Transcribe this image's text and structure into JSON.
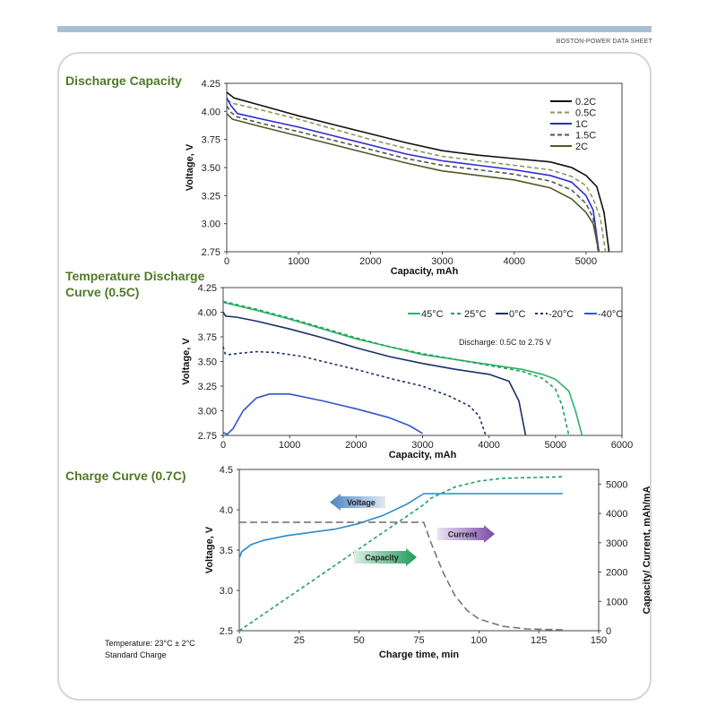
{
  "header": {
    "sheet_label": "BOSTON-POWER DATA SHEET"
  },
  "sections": {
    "discharge_title": "Discharge Capacity",
    "temp_title_1": "Temperature Discharge",
    "temp_title_2": "Curve (0.5C)",
    "charge_title": "Charge Curve (0.7C)"
  },
  "footnote": {
    "line1": "Temperature:  23°C ±  2°C",
    "line2": "Standard Charge"
  },
  "chart_data": [
    {
      "type": "line",
      "title": "Discharge Capacity",
      "xlabel": "Capacity, mAh",
      "ylabel": "Voltage, V",
      "xlim": [
        0,
        5500
      ],
      "ylim": [
        2.75,
        4.25
      ],
      "xticks": [
        0,
        1000,
        2000,
        3000,
        4000,
        5000
      ],
      "yticks": [
        "2.75",
        "3.00",
        "3.25",
        "3.50",
        "3.75",
        "4.00",
        "4.25"
      ],
      "series": [
        {
          "name": "0.2C",
          "color": "#111111",
          "dash": "",
          "points": [
            [
              0,
              4.17
            ],
            [
              100,
              4.12
            ],
            [
              500,
              4.05
            ],
            [
              1000,
              3.96
            ],
            [
              1500,
              3.88
            ],
            [
              2000,
              3.8
            ],
            [
              2500,
              3.72
            ],
            [
              3000,
              3.65
            ],
            [
              3500,
              3.61
            ],
            [
              4000,
              3.58
            ],
            [
              4500,
              3.55
            ],
            [
              4800,
              3.5
            ],
            [
              5000,
              3.43
            ],
            [
              5150,
              3.33
            ],
            [
              5250,
              3.1
            ],
            [
              5320,
              2.75
            ]
          ]
        },
        {
          "name": "0.5C",
          "color": "#8a9a5b",
          "dash": "5,3",
          "points": [
            [
              0,
              4.1
            ],
            [
              100,
              4.07
            ],
            [
              500,
              4.01
            ],
            [
              1000,
              3.93
            ],
            [
              1500,
              3.84
            ],
            [
              2000,
              3.75
            ],
            [
              2500,
              3.67
            ],
            [
              3000,
              3.6
            ],
            [
              3500,
              3.56
            ],
            [
              4000,
              3.52
            ],
            [
              4500,
              3.48
            ],
            [
              4800,
              3.42
            ],
            [
              5000,
              3.34
            ],
            [
              5100,
              3.22
            ],
            [
              5200,
              3.05
            ],
            [
              5270,
              2.75
            ]
          ]
        },
        {
          "name": "1C",
          "color": "#2a2ad0",
          "dash": "",
          "points": [
            [
              0,
              4.12
            ],
            [
              60,
              4.05
            ],
            [
              150,
              3.98
            ],
            [
              500,
              3.93
            ],
            [
              1000,
              3.86
            ],
            [
              1500,
              3.78
            ],
            [
              2000,
              3.7
            ],
            [
              2500,
              3.62
            ],
            [
              3000,
              3.56
            ],
            [
              3500,
              3.52
            ],
            [
              4000,
              3.48
            ],
            [
              4500,
              3.43
            ],
            [
              4800,
              3.37
            ],
            [
              5000,
              3.25
            ],
            [
              5100,
              3.12
            ],
            [
              5180,
              2.75
            ]
          ]
        },
        {
          "name": "1.5C",
          "color": "#555555",
          "dash": "5,3",
          "points": [
            [
              0,
              4.05
            ],
            [
              60,
              3.99
            ],
            [
              150,
              3.95
            ],
            [
              500,
              3.89
            ],
            [
              1000,
              3.82
            ],
            [
              1500,
              3.74
            ],
            [
              2000,
              3.66
            ],
            [
              2500,
              3.58
            ],
            [
              3000,
              3.52
            ],
            [
              3500,
              3.48
            ],
            [
              4000,
              3.44
            ],
            [
              4500,
              3.38
            ],
            [
              4800,
              3.3
            ],
            [
              5000,
              3.18
            ],
            [
              5100,
              3.05
            ],
            [
              5170,
              2.75
            ]
          ]
        },
        {
          "name": "2C",
          "color": "#4e5a25",
          "dash": "",
          "points": [
            [
              0,
              3.98
            ],
            [
              80,
              3.93
            ],
            [
              500,
              3.86
            ],
            [
              1000,
              3.78
            ],
            [
              1500,
              3.7
            ],
            [
              2000,
              3.62
            ],
            [
              2500,
              3.54
            ],
            [
              3000,
              3.47
            ],
            [
              3500,
              3.43
            ],
            [
              4000,
              3.39
            ],
            [
              4500,
              3.32
            ],
            [
              4800,
              3.22
            ],
            [
              5000,
              3.1
            ],
            [
              5100,
              3.0
            ],
            [
              5180,
              2.75
            ]
          ]
        }
      ],
      "legend_position": "top-right"
    },
    {
      "type": "line",
      "title": "Temperature Discharge Curve (0.5C)",
      "xlabel": "Capacity, mAh",
      "ylabel": "Voltage, V",
      "xlim": [
        0,
        6000
      ],
      "ylim": [
        2.75,
        4.25
      ],
      "xticks": [
        0,
        1000,
        2000,
        3000,
        4000,
        5000,
        6000
      ],
      "yticks": [
        "2.75",
        "3.00",
        "3.25",
        "3.50",
        "3.75",
        "4.00",
        "4.25"
      ],
      "annotation": "Discharge: 0.5C to 2.75 V",
      "series": [
        {
          "name": "45°C",
          "color": "#2db36b",
          "dash": "",
          "points": [
            [
              0,
              4.1
            ],
            [
              500,
              4.02
            ],
            [
              1000,
              3.93
            ],
            [
              1500,
              3.83
            ],
            [
              2000,
              3.73
            ],
            [
              2500,
              3.65
            ],
            [
              3000,
              3.57
            ],
            [
              3500,
              3.52
            ],
            [
              4000,
              3.47
            ],
            [
              4500,
              3.42
            ],
            [
              4800,
              3.37
            ],
            [
              5000,
              3.32
            ],
            [
              5200,
              3.2
            ],
            [
              5300,
              3.0
            ],
            [
              5400,
              2.75
            ]
          ]
        },
        {
          "name": "25°C",
          "color": "#1fa058",
          "dash": "4,3",
          "points": [
            [
              0,
              4.11
            ],
            [
              500,
              4.03
            ],
            [
              1000,
              3.94
            ],
            [
              1500,
              3.84
            ],
            [
              2000,
              3.74
            ],
            [
              2500,
              3.65
            ],
            [
              3000,
              3.58
            ],
            [
              3500,
              3.52
            ],
            [
              4000,
              3.46
            ],
            [
              4500,
              3.4
            ],
            [
              4800,
              3.33
            ],
            [
              5000,
              3.22
            ],
            [
              5100,
              3.05
            ],
            [
              5200,
              2.75
            ]
          ]
        },
        {
          "name": "0°C",
          "color": "#1b2f6b",
          "dash": "",
          "points": [
            [
              0,
              4.0
            ],
            [
              40,
              3.96
            ],
            [
              200,
              3.95
            ],
            [
              500,
              3.91
            ],
            [
              1000,
              3.83
            ],
            [
              1500,
              3.74
            ],
            [
              2000,
              3.64
            ],
            [
              2500,
              3.55
            ],
            [
              3000,
              3.48
            ],
            [
              3500,
              3.42
            ],
            [
              4000,
              3.37
            ],
            [
              4300,
              3.3
            ],
            [
              4450,
              3.1
            ],
            [
              4550,
              2.75
            ]
          ]
        },
        {
          "name": "-20°C",
          "color": "#1b2f6b",
          "dash": "3,3",
          "points": [
            [
              0,
              3.65
            ],
            [
              30,
              3.58
            ],
            [
              80,
              3.57
            ],
            [
              200,
              3.58
            ],
            [
              500,
              3.6
            ],
            [
              800,
              3.59
            ],
            [
              1200,
              3.55
            ],
            [
              1500,
              3.5
            ],
            [
              2000,
              3.42
            ],
            [
              2500,
              3.33
            ],
            [
              3000,
              3.25
            ],
            [
              3400,
              3.15
            ],
            [
              3700,
              3.05
            ],
            [
              3850,
              2.95
            ],
            [
              3950,
              2.75
            ]
          ]
        },
        {
          "name": "-40°C",
          "color": "#3355cc",
          "dash": "",
          "points": [
            [
              0,
              2.78
            ],
            [
              60,
              2.76
            ],
            [
              150,
              2.82
            ],
            [
              300,
              3.0
            ],
            [
              500,
              3.13
            ],
            [
              700,
              3.17
            ],
            [
              1000,
              3.17
            ],
            [
              1500,
              3.1
            ],
            [
              2000,
              3.02
            ],
            [
              2500,
              2.93
            ],
            [
              2800,
              2.85
            ],
            [
              3000,
              2.77
            ]
          ]
        }
      ],
      "legend_position": "top-right"
    },
    {
      "type": "line",
      "title": "Charge Curve (0.7C)",
      "xlabel": "Charge time, min",
      "ylabel": "Voltage, V",
      "y2label": "Capacity/ Current, mAh/mA",
      "xlim": [
        0,
        150
      ],
      "ylim": [
        2.5,
        4.5
      ],
      "y2lim": [
        0,
        5500
      ],
      "xticks": [
        0,
        25,
        50,
        75,
        100,
        125,
        150
      ],
      "yticks": [
        "2.5",
        "3.0",
        "3.5",
        "4.0",
        "4.5"
      ],
      "y2ticks": [
        0,
        1000,
        2000,
        3000,
        4000,
        5000
      ],
      "series": [
        {
          "name": "Voltage",
          "axis": "left",
          "color": "#2a8acb",
          "dash": "",
          "points": [
            [
              0,
              3.4
            ],
            [
              1,
              3.48
            ],
            [
              5,
              3.57
            ],
            [
              10,
              3.62
            ],
            [
              20,
              3.68
            ],
            [
              30,
              3.72
            ],
            [
              40,
              3.76
            ],
            [
              50,
              3.83
            ],
            [
              60,
              3.93
            ],
            [
              70,
              4.07
            ],
            [
              77,
              4.2
            ],
            [
              100,
              4.2
            ],
            [
              135,
              4.2
            ]
          ]
        },
        {
          "name": "Capacity",
          "axis": "right",
          "color": "#22a06b",
          "dash": "4,3",
          "points": [
            [
              0,
              0
            ],
            [
              77,
              4300
            ],
            [
              80,
              4520
            ],
            [
              90,
              4900
            ],
            [
              100,
              5100
            ],
            [
              110,
              5200
            ],
            [
              135,
              5250
            ]
          ]
        },
        {
          "name": "Current",
          "axis": "right",
          "color": "#777777",
          "dash": "8,4",
          "points": [
            [
              0,
              3700
            ],
            [
              77,
              3700
            ],
            [
              80,
              3000
            ],
            [
              85,
              2000
            ],
            [
              90,
              1200
            ],
            [
              95,
              700
            ],
            [
              100,
              400
            ],
            [
              110,
              150
            ],
            [
              120,
              60
            ],
            [
              135,
              30
            ]
          ]
        }
      ],
      "annotations": [
        "Voltage",
        "Capacity",
        "Current"
      ]
    }
  ]
}
